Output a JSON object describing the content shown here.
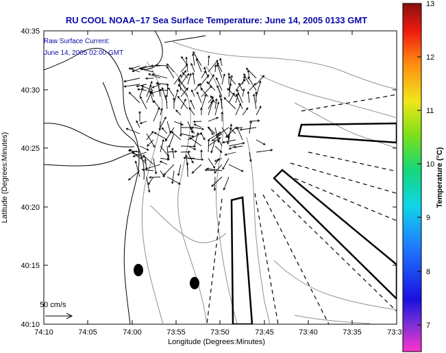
{
  "chart_data": {
    "type": "map",
    "title": "RU COOL  NOAA–17  Sea Surface Temperature:  June 14, 2005 0133 GMT",
    "xlabel": "Longitude (Degrees:Minutes)",
    "ylabel": "Latitude (Degrees:Minutes)",
    "x_ticks": [
      "74:10",
      "74:05",
      "74:00",
      "73:55",
      "73:50",
      "73:45",
      "73:40",
      "73:35",
      "73:3"
    ],
    "y_ticks": [
      "40:35",
      "40:30",
      "40:25",
      "40:20",
      "40:15",
      "40:10"
    ],
    "xlim_minutes_west": [
      70,
      30
    ],
    "ylim_minutes_north": [
      10,
      35
    ],
    "inset_label_1": "Raw Surface Current:",
    "inset_label_2": "June 14, 2005 02:00 GMT",
    "scale_label": "50 cm/s",
    "colorbar": {
      "title": "Temperature (°C)",
      "ticks": [
        "13",
        "12",
        "11",
        "10",
        "9",
        "8",
        "7"
      ],
      "range": [
        6.5,
        13
      ]
    }
  }
}
